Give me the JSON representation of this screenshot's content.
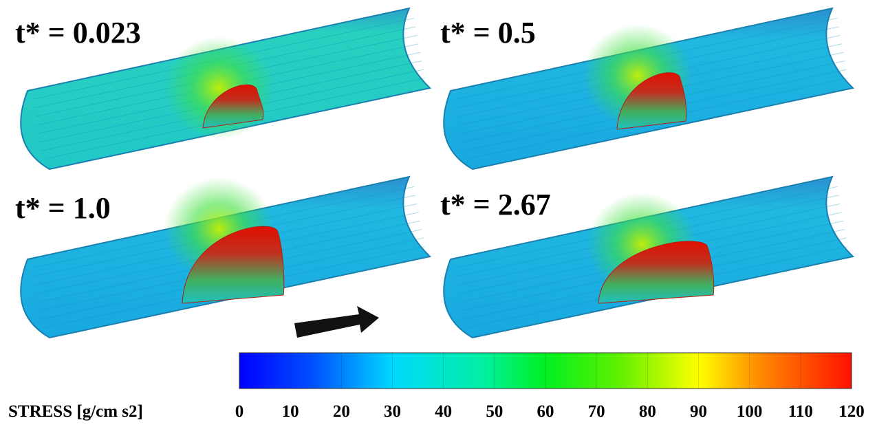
{
  "panels": [
    {
      "label": "t* = 0.023"
    },
    {
      "label": "t* = 0.5"
    },
    {
      "label": "t* = 1.0"
    },
    {
      "label": "t* = 2.67"
    }
  ],
  "colorbar": {
    "label": "STRESS [g/cm s2]",
    "lim": [
      0,
      120
    ],
    "ticks": [
      0,
      10,
      20,
      30,
      40,
      50,
      60,
      70,
      80,
      90,
      100,
      110,
      120
    ]
  }
}
